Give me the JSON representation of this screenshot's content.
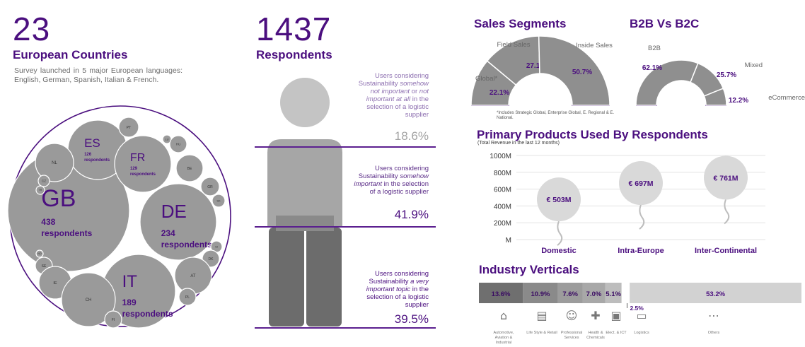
{
  "countries": {
    "number": "23",
    "title": "European Countries",
    "description": "Survey launched in 5 major European languages: English, German, Spanish, Italian & French.",
    "bubbles": [
      {
        "code": "GB",
        "label": "438 respondents"
      },
      {
        "code": "DE",
        "label": "234 respondents"
      },
      {
        "code": "IT",
        "label": "189 respondents"
      },
      {
        "code": "ES",
        "label": "126 respondents"
      },
      {
        "code": "FR",
        "label": "129 respondents"
      },
      {
        "code": "PT",
        "label": ""
      },
      {
        "code": "LU",
        "label": ""
      },
      {
        "code": "HU",
        "label": ""
      },
      {
        "code": "BE",
        "label": ""
      },
      {
        "code": "NL",
        "label": ""
      },
      {
        "code": "CZ",
        "label": ""
      },
      {
        "code": "TR",
        "label": ""
      },
      {
        "code": "GR",
        "label": ""
      },
      {
        "code": "SK",
        "label": ""
      },
      {
        "code": "SI",
        "label": ""
      },
      {
        "code": "DK",
        "label": ""
      },
      {
        "code": "AT",
        "label": ""
      },
      {
        "code": "PL",
        "label": ""
      },
      {
        "code": "NO",
        "label": ""
      },
      {
        "code": "SE",
        "label": ""
      },
      {
        "code": "IE",
        "label": ""
      },
      {
        "code": "CH",
        "label": ""
      },
      {
        "code": "FI",
        "label": ""
      }
    ]
  },
  "respondents": {
    "number": "1437",
    "title": "Respondents",
    "segments": [
      {
        "pre": "Users considering Sustainability ",
        "em": "somehow not important",
        "mid": " or ",
        "em2": "not important at all",
        "post": " in the selection of a logistic supplier",
        "pct": "18.6%"
      },
      {
        "pre": "Users considering Sustainability ",
        "em": "somehow important",
        "mid": " in the selection of a logistic supplier",
        "em2": "",
        "post": "",
        "pct": "41.9%"
      },
      {
        "pre": "Users considering Sustainability ",
        "em": "a very important topic",
        "mid": " in the selection of a logistic supplier",
        "em2": "",
        "post": "",
        "pct": "39.5%"
      }
    ]
  },
  "sales_segments": {
    "title": "Sales Segments",
    "footnote": "*Includes Strategic Global, Enterprise Global, E. Regional & E. National."
  },
  "b2b": {
    "title": "B2B Vs B2C"
  },
  "products": {
    "title": "Primary Products Used By Respondents",
    "subtitle": "(Total Revenue in the last 12 months)"
  },
  "industry": {
    "title": "Industry Verticals"
  },
  "colors": {
    "purple": "#4b0f7f",
    "grey": "#9a9a9a",
    "dark_grey": "#6f6f6f",
    "light_grey": "#d4d4d4"
  },
  "chart_data": [
    {
      "type": "pie",
      "title": "Sales Segments",
      "labels": [
        "Global*",
        "Field Sales",
        "Inside Sales"
      ],
      "values": [
        22.1,
        27.1,
        50.7
      ],
      "value_labels": [
        "22.1%",
        "27.1%",
        "50.7%"
      ]
    },
    {
      "type": "pie",
      "title": "B2B Vs B2C",
      "labels": [
        "B2B",
        "Mixed",
        "eCommerce"
      ],
      "values": [
        62.1,
        25.7,
        12.2
      ],
      "value_labels": [
        "62.1%",
        "25.7%",
        "12.2%"
      ]
    },
    {
      "type": "scatter",
      "title": "Primary Products Used By Respondents",
      "subtitle": "(Total Revenue in the last 12 months)",
      "categories": [
        "Domestic",
        "Intra-Europe",
        "Inter-Continental"
      ],
      "values": [
        503,
        697,
        761
      ],
      "value_labels": [
        "€ 503M",
        "€ 697M",
        "€ 761M"
      ],
      "ylim": [
        0,
        1000
      ],
      "yticks": [
        "M",
        "200M",
        "400M",
        "600M",
        "800M",
        "1000M"
      ],
      "grid": true
    },
    {
      "type": "bar",
      "title": "Industry Verticals",
      "categories": [
        "Automotive, Aviation & Industrial",
        "Life Style & Retail",
        "Professional Services",
        "Health & Chemicals",
        "Elect. & ICT",
        "Logistics",
        "Others"
      ],
      "values": [
        13.6,
        10.9,
        7.6,
        7.0,
        5.1,
        2.5,
        53.2
      ],
      "value_labels": [
        "13.6%",
        "10.9%",
        "7.6%",
        "7.0%",
        "5.1%",
        "2.5%",
        "53.2%"
      ]
    }
  ]
}
